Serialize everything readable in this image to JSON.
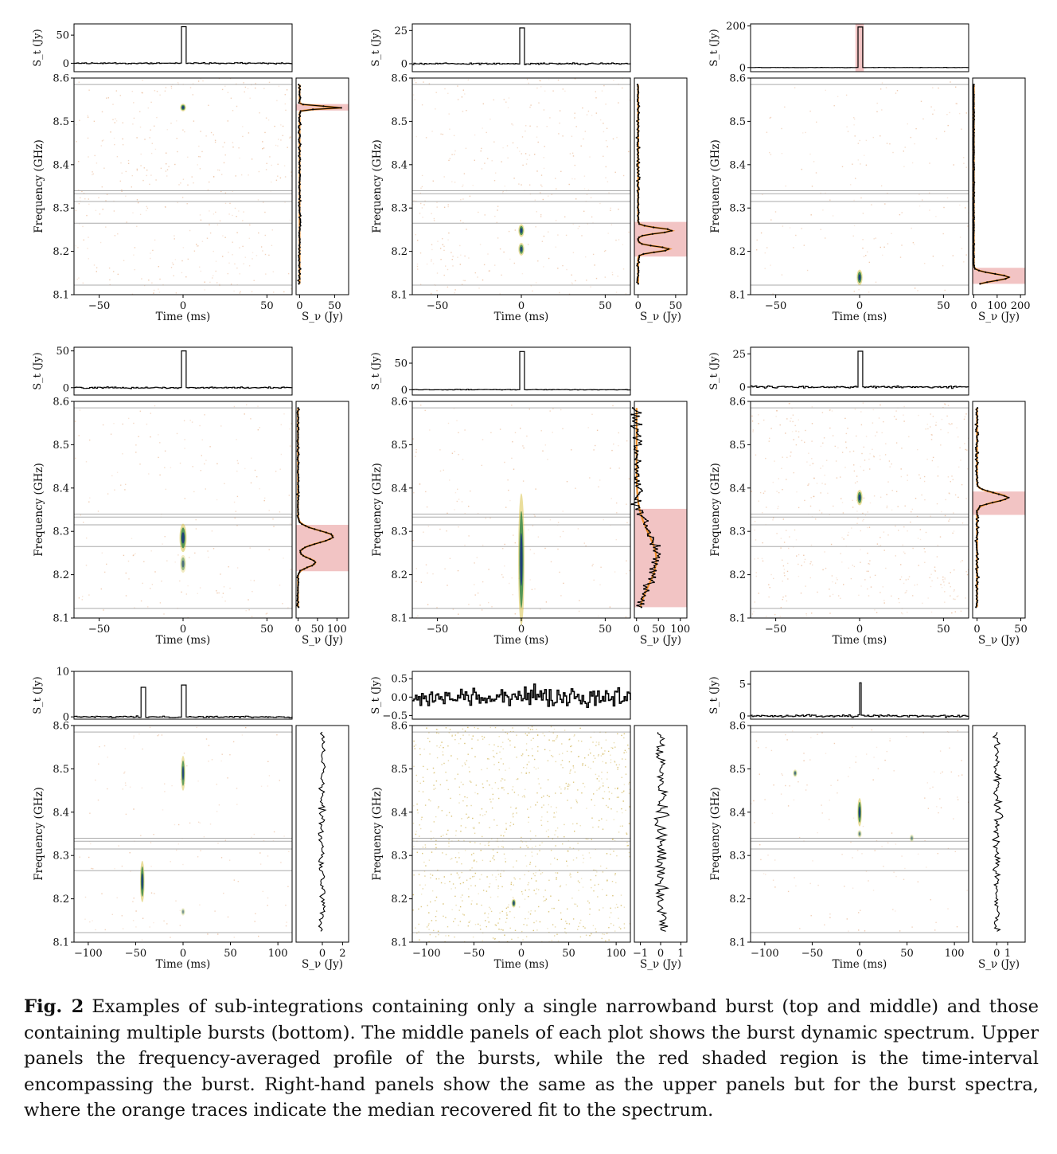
{
  "figure": {
    "caption_label": "Fig. 2",
    "caption_text": "Examples of sub-integrations containing only a single narrowband burst (top and middle) and those containing multiple bursts (bottom). The middle panels of each plot shows the burst dynamic spectrum. Upper panels the frequency-averaged profile of the bursts, while the red shaded region is the time-interval encompassing the burst. Right-hand panels show the same as the upper panels but for the burst spectra, where the orange traces indicate the median recovered fit to the spectrum."
  },
  "colors": {
    "profile_line": "#000000",
    "fit_line": "#f0902a",
    "shade": "#f2c4c4",
    "mask_line": "#aaaaaa",
    "noise": "#e8b48e",
    "burst_core": "#1f3f7a",
    "burst_mid": "#3a8a4a",
    "burst_edge": "#d9c24a"
  },
  "chart_data": [
    {
      "type": "dynamic_spectrum",
      "panel": "top-left",
      "xlabel": "Time (ms)",
      "ylabel": "Frequency (GHz)",
      "top_ylabel": "S_t (Jy)",
      "right_xlabel": "S_ν (Jy)",
      "xlim": [
        -65,
        65
      ],
      "ylim": [
        8.1,
        8.6
      ],
      "x_ticks": [
        "−50",
        "0",
        "50"
      ],
      "x_tick_values": [
        -50,
        0,
        50
      ],
      "y_ticks": [
        "8.1",
        "8.2",
        "8.3",
        "8.4",
        "8.5",
        "8.6"
      ],
      "top_ylim": [
        -15,
        70
      ],
      "top_ticks": [
        "0",
        "50"
      ],
      "top_tick_values": [
        0,
        50
      ],
      "right_xlim": [
        -5,
        70
      ],
      "right_ticks": [
        "0",
        "50"
      ],
      "right_tick_values": [
        0,
        50
      ],
      "mask_lines_ghz": [
        8.122,
        8.265,
        8.315,
        8.333,
        8.34,
        8.585
      ],
      "noise_level": 0.35,
      "bursts": [
        {
          "t": 0,
          "f": 8.532,
          "df": 0.004,
          "dt": 1.5,
          "peak": 1
        }
      ],
      "profile": {
        "type": "single",
        "t": 0,
        "peak": 65,
        "width": 1.5,
        "noise": 1.2
      },
      "spectrum": {
        "noise": 1.5,
        "lines": [
          {
            "f": 8.532,
            "peak": 60,
            "width": 0.003
          }
        ]
      },
      "time_shade": null,
      "freq_shade": [
        8.525,
        8.54
      ],
      "fit": true
    },
    {
      "type": "dynamic_spectrum",
      "panel": "top-middle",
      "xlabel": "Time (ms)",
      "ylabel": "Frequency (GHz)",
      "top_ylabel": "S_t (Jy)",
      "right_xlabel": "S_ν (Jy)",
      "xlim": [
        -65,
        65
      ],
      "ylim": [
        8.1,
        8.6
      ],
      "x_ticks": [
        "−50",
        "0",
        "50"
      ],
      "x_tick_values": [
        -50,
        0,
        50
      ],
      "y_ticks": [
        "8.1",
        "8.2",
        "8.3",
        "8.4",
        "8.5",
        "8.6"
      ],
      "top_ylim": [
        -6,
        30
      ],
      "top_ticks": [
        "0",
        "25"
      ],
      "top_tick_values": [
        0,
        25
      ],
      "right_xlim": [
        -5,
        65
      ],
      "right_ticks": [
        "0",
        "50"
      ],
      "right_tick_values": [
        0,
        50
      ],
      "mask_lines_ghz": [
        8.122,
        8.265,
        8.315,
        8.333,
        8.34,
        8.585
      ],
      "noise_level": 0.3,
      "bursts": [
        {
          "t": 0,
          "f": 8.248,
          "df": 0.008,
          "dt": 1.5,
          "peak": 1
        },
        {
          "t": 0,
          "f": 8.205,
          "df": 0.008,
          "dt": 1.5,
          "peak": 0.9
        }
      ],
      "profile": {
        "type": "single",
        "t": 0,
        "peak": 27,
        "width": 1.5,
        "noise": 0.6
      },
      "spectrum": {
        "noise": 1.5,
        "lines": [
          {
            "f": 8.248,
            "peak": 45,
            "width": 0.006
          },
          {
            "f": 8.205,
            "peak": 42,
            "width": 0.006
          }
        ]
      },
      "time_shade": null,
      "freq_shade": [
        8.188,
        8.268
      ],
      "fit": true
    },
    {
      "type": "dynamic_spectrum",
      "panel": "top-right",
      "xlabel": "Time (ms)",
      "ylabel": "Frequency (GHz)",
      "top_ylabel": "S_t (Jy)",
      "right_xlabel": "S_ν (Jy)",
      "xlim": [
        -65,
        65
      ],
      "ylim": [
        8.1,
        8.6
      ],
      "x_ticks": [
        "−50",
        "0",
        "50"
      ],
      "x_tick_values": [
        -50,
        0,
        50
      ],
      "y_ticks": [
        "8.1",
        "8.2",
        "8.3",
        "8.4",
        "8.5",
        "8.6"
      ],
      "top_ylim": [
        -20,
        210
      ],
      "top_ticks": [
        "0",
        "200"
      ],
      "top_tick_values": [
        0,
        200
      ],
      "right_xlim": [
        -5,
        220
      ],
      "right_ticks": [
        "0",
        "100",
        "200"
      ],
      "right_tick_values": [
        0,
        100,
        200
      ],
      "mask_lines_ghz": [
        8.122,
        8.265,
        8.315,
        8.333,
        8.34,
        8.585
      ],
      "noise_level": 0.1,
      "bursts": [
        {
          "t": 0,
          "f": 8.14,
          "df": 0.01,
          "dt": 1.5,
          "peak": 1
        }
      ],
      "profile": {
        "type": "single",
        "t": 0,
        "peak": 195,
        "width": 1.5,
        "noise": 0.6
      },
      "spectrum": {
        "noise": 2,
        "lines": [
          {
            "f": 8.14,
            "peak": 150,
            "width": 0.008
          }
        ]
      },
      "time_shade": [
        -2.5,
        2.5
      ],
      "freq_shade": [
        8.125,
        8.162
      ],
      "fit": true
    },
    {
      "type": "dynamic_spectrum",
      "panel": "middle-left",
      "xlabel": "Time (ms)",
      "ylabel": "Frequency (GHz)",
      "top_ylabel": "S_t (Jy)",
      "right_xlabel": "S_ν (Jy)",
      "xlim": [
        -65,
        65
      ],
      "ylim": [
        8.1,
        8.6
      ],
      "x_ticks": [
        "−50",
        "0",
        "50"
      ],
      "x_tick_values": [
        -50,
        0,
        50
      ],
      "y_ticks": [
        "8.1",
        "8.2",
        "8.3",
        "8.4",
        "8.5",
        "8.6"
      ],
      "top_ylim": [
        -10,
        55
      ],
      "top_ticks": [
        "0",
        "50"
      ],
      "top_tick_values": [
        0,
        50
      ],
      "right_xlim": [
        -5,
        130
      ],
      "right_ticks": [
        "0",
        "50",
        "100"
      ],
      "right_tick_values": [
        0,
        50,
        100
      ],
      "mask_lines_ghz": [
        8.122,
        8.265,
        8.315,
        8.333,
        8.34,
        8.585
      ],
      "noise_level": 0.12,
      "bursts": [
        {
          "t": 0,
          "f": 8.285,
          "df": 0.02,
          "dt": 1.8,
          "peak": 1
        },
        {
          "t": 0,
          "f": 8.225,
          "df": 0.012,
          "dt": 1.5,
          "peak": 0.6
        }
      ],
      "profile": {
        "type": "single",
        "t": 0,
        "peak": 50,
        "width": 1.5,
        "noise": 1.0
      },
      "spectrum": {
        "noise": 2,
        "lines": [
          {
            "f": 8.288,
            "peak": 90,
            "width": 0.014
          },
          {
            "f": 8.228,
            "peak": 45,
            "width": 0.01
          }
        ]
      },
      "time_shade": null,
      "freq_shade": [
        8.208,
        8.315
      ],
      "fit": true
    },
    {
      "type": "dynamic_spectrum",
      "panel": "middle-center",
      "xlabel": "Time (ms)",
      "ylabel": "Frequency (GHz)",
      "top_ylabel": "S_t (Jy)",
      "right_xlabel": "S_ν (Jy)",
      "xlim": [
        -65,
        65
      ],
      "ylim": [
        8.1,
        8.6
      ],
      "x_ticks": [
        "−50",
        "0",
        "50"
      ],
      "x_tick_values": [
        -50,
        0,
        50
      ],
      "y_ticks": [
        "8.1",
        "8.2",
        "8.3",
        "8.4",
        "8.5",
        "8.6"
      ],
      "top_ylim": [
        -10,
        80
      ],
      "top_ticks": [
        "0",
        "50"
      ],
      "top_tick_values": [
        0,
        50
      ],
      "right_xlim": [
        -5,
        115
      ],
      "right_ticks": [
        "0",
        "50",
        "100"
      ],
      "right_tick_values": [
        0,
        50,
        100
      ],
      "mask_lines_ghz": [
        8.122,
        8.265,
        8.315,
        8.333,
        8.34,
        8.585
      ],
      "noise_level": 0.12,
      "bursts": [
        {
          "t": 0,
          "f": 8.235,
          "df": 0.1,
          "dt": 1.6,
          "peak": 1
        }
      ],
      "profile": {
        "type": "single",
        "t": 0,
        "peak": 72,
        "width": 1.5,
        "noise": 0.5
      },
      "spectrum": {
        "noise": 12,
        "lines": [
          {
            "f": 8.235,
            "peak": 45,
            "width": 0.06
          }
        ]
      },
      "time_shade": null,
      "freq_shade": [
        8.125,
        8.352
      ],
      "fit": true
    },
    {
      "type": "dynamic_spectrum",
      "panel": "middle-right",
      "xlabel": "Time (ms)",
      "ylabel": "Frequency (GHz)",
      "top_ylabel": "S_t (Jy)",
      "right_xlabel": "S_ν (Jy)",
      "xlim": [
        -65,
        65
      ],
      "ylim": [
        8.1,
        8.6
      ],
      "x_ticks": [
        "−50",
        "0",
        "50"
      ],
      "x_tick_values": [
        -50,
        0,
        50
      ],
      "y_ticks": [
        "8.1",
        "8.2",
        "8.3",
        "8.4",
        "8.5",
        "8.6"
      ],
      "top_ylim": [
        -6,
        30
      ],
      "top_ticks": [
        "0",
        "25"
      ],
      "top_tick_values": [
        0,
        25
      ],
      "right_xlim": [
        -5,
        55
      ],
      "right_ticks": [
        "0",
        "50"
      ],
      "right_tick_values": [
        0,
        50
      ],
      "mask_lines_ghz": [
        8.122,
        8.265,
        8.315,
        8.333,
        8.34,
        8.585
      ],
      "noise_level": 0.45,
      "bursts": [
        {
          "t": 0,
          "f": 8.378,
          "df": 0.01,
          "dt": 1.5,
          "peak": 1
        }
      ],
      "profile": {
        "type": "single",
        "t": 0,
        "peak": 27,
        "width": 1.5,
        "noise": 0.7
      },
      "spectrum": {
        "noise": 1.5,
        "lines": [
          {
            "f": 8.378,
            "peak": 35,
            "width": 0.01
          }
        ]
      },
      "time_shade": null,
      "freq_shade": [
        8.338,
        8.392
      ],
      "fit": true
    },
    {
      "type": "dynamic_spectrum",
      "panel": "bottom-left",
      "xlabel": "Time (ms)",
      "ylabel": "Frequency (GHz)",
      "top_ylabel": "S_t (Jy)",
      "right_xlabel": "S_ν (Jy)",
      "xlim": [
        -115,
        115
      ],
      "ylim": [
        8.1,
        8.6
      ],
      "x_ticks": [
        "−100",
        "−50",
        "0",
        "50",
        "100"
      ],
      "x_tick_values": [
        -100,
        -50,
        0,
        50,
        100
      ],
      "y_ticks": [
        "8.1",
        "8.2",
        "8.3",
        "8.4",
        "8.5",
        "8.6"
      ],
      "top_ylim": [
        -0.5,
        10
      ],
      "top_ticks": [
        "0",
        "10"
      ],
      "top_tick_values": [
        0,
        10
      ],
      "right_xlim": [
        -2.6,
        2.6
      ],
      "right_ticks": [
        "0",
        "2"
      ],
      "right_tick_values": [
        0,
        2
      ],
      "mask_lines_ghz": [
        8.122,
        8.265,
        8.315,
        8.333,
        8.34,
        8.585
      ],
      "noise_level": 0.08,
      "bursts": [
        {
          "t": -43,
          "f": 8.24,
          "df": 0.03,
          "dt": 2,
          "peak": 1
        },
        {
          "t": 0,
          "f": 8.49,
          "df": 0.025,
          "dt": 2,
          "peak": 0.9
        },
        {
          "t": 0,
          "f": 8.17,
          "df": 0.004,
          "dt": 1.5,
          "peak": 0.4
        }
      ],
      "profile": {
        "type": "double",
        "peaks": [
          {
            "t": -43,
            "peak": 6.5
          },
          {
            "t": 0,
            "peak": 7
          }
        ],
        "width": 2,
        "noise": 0.15
      },
      "spectrum": {
        "noise": 0.35,
        "lines": []
      },
      "time_shade": null,
      "freq_shade": null,
      "fit": false
    },
    {
      "type": "dynamic_spectrum",
      "panel": "bottom-center",
      "xlabel": "Time (ms)",
      "ylabel": "Frequency (GHz)",
      "top_ylabel": "S_t (Jy)",
      "right_xlabel": "S_ν (Jy)",
      "xlim": [
        -115,
        115
      ],
      "ylim": [
        8.1,
        8.6
      ],
      "x_ticks": [
        "−100",
        "−50",
        "0",
        "50",
        "100"
      ],
      "x_tick_values": [
        -100,
        -50,
        0,
        50,
        100
      ],
      "y_ticks": [
        "8.1",
        "8.2",
        "8.3",
        "8.4",
        "8.5",
        "8.6"
      ],
      "top_ylim": [
        -0.6,
        0.7
      ],
      "top_ticks": [
        "−0.5",
        "0.0",
        "0.5"
      ],
      "top_tick_values": [
        -0.5,
        0,
        0.5
      ],
      "right_xlim": [
        -1.3,
        1.3
      ],
      "right_ticks": [
        "−1",
        "0",
        "1"
      ],
      "right_tick_values": [
        -1,
        0,
        1
      ],
      "mask_lines_ghz": [
        8.122,
        8.265,
        8.315,
        8.333,
        8.34,
        8.585
      ],
      "noise_level": 1.0,
      "bursts": [
        {
          "t": -8,
          "f": 8.19,
          "df": 0.005,
          "dt": 2,
          "peak": 0.9
        }
      ],
      "profile": {
        "type": "noise",
        "noise": 0.18
      },
      "spectrum": {
        "noise": 0.35,
        "lines": []
      },
      "time_shade": null,
      "freq_shade": null,
      "fit": false
    },
    {
      "type": "dynamic_spectrum",
      "panel": "bottom-right",
      "xlabel": "Time (ms)",
      "ylabel": "Frequency (GHz)",
      "top_ylabel": "S_t (Jy)",
      "right_xlabel": "S_ν (Jy)",
      "xlim": [
        -115,
        115
      ],
      "ylim": [
        8.1,
        8.6
      ],
      "x_ticks": [
        "−100",
        "−50",
        "0",
        "50",
        "100"
      ],
      "x_tick_values": [
        -100,
        -50,
        0,
        50,
        100
      ],
      "y_ticks": [
        "8.1",
        "8.2",
        "8.3",
        "8.4",
        "8.5",
        "8.6"
      ],
      "top_ylim": [
        -0.5,
        7
      ],
      "top_ticks": [
        "0",
        "5"
      ],
      "top_tick_values": [
        0,
        5
      ],
      "right_xlim": [
        -2.2,
        2.6
      ],
      "right_ticks": [
        "0",
        "1"
      ],
      "right_tick_values": [
        0,
        1
      ],
      "mask_lines_ghz": [
        8.122,
        8.265,
        8.315,
        8.333,
        8.34,
        8.585
      ],
      "noise_level": 0.08,
      "bursts": [
        {
          "t": 0,
          "f": 8.4,
          "df": 0.02,
          "dt": 2,
          "peak": 1
        },
        {
          "t": -68,
          "f": 8.49,
          "df": 0.004,
          "dt": 2,
          "peak": 0.6
        },
        {
          "t": 55,
          "f": 8.34,
          "df": 0.004,
          "dt": 2,
          "peak": 0.4
        },
        {
          "t": 0,
          "f": 8.35,
          "df": 0.004,
          "dt": 1.5,
          "peak": 0.5
        }
      ],
      "profile": {
        "type": "single",
        "t": 0,
        "peak": 5.2,
        "width": 1.5,
        "noise": 0.18
      },
      "spectrum": {
        "noise": 0.3,
        "lines": [
          {
            "f": 8.39,
            "peak": 0.6,
            "width": 0.004
          }
        ]
      },
      "time_shade": null,
      "freq_shade": null,
      "fit": false
    }
  ]
}
